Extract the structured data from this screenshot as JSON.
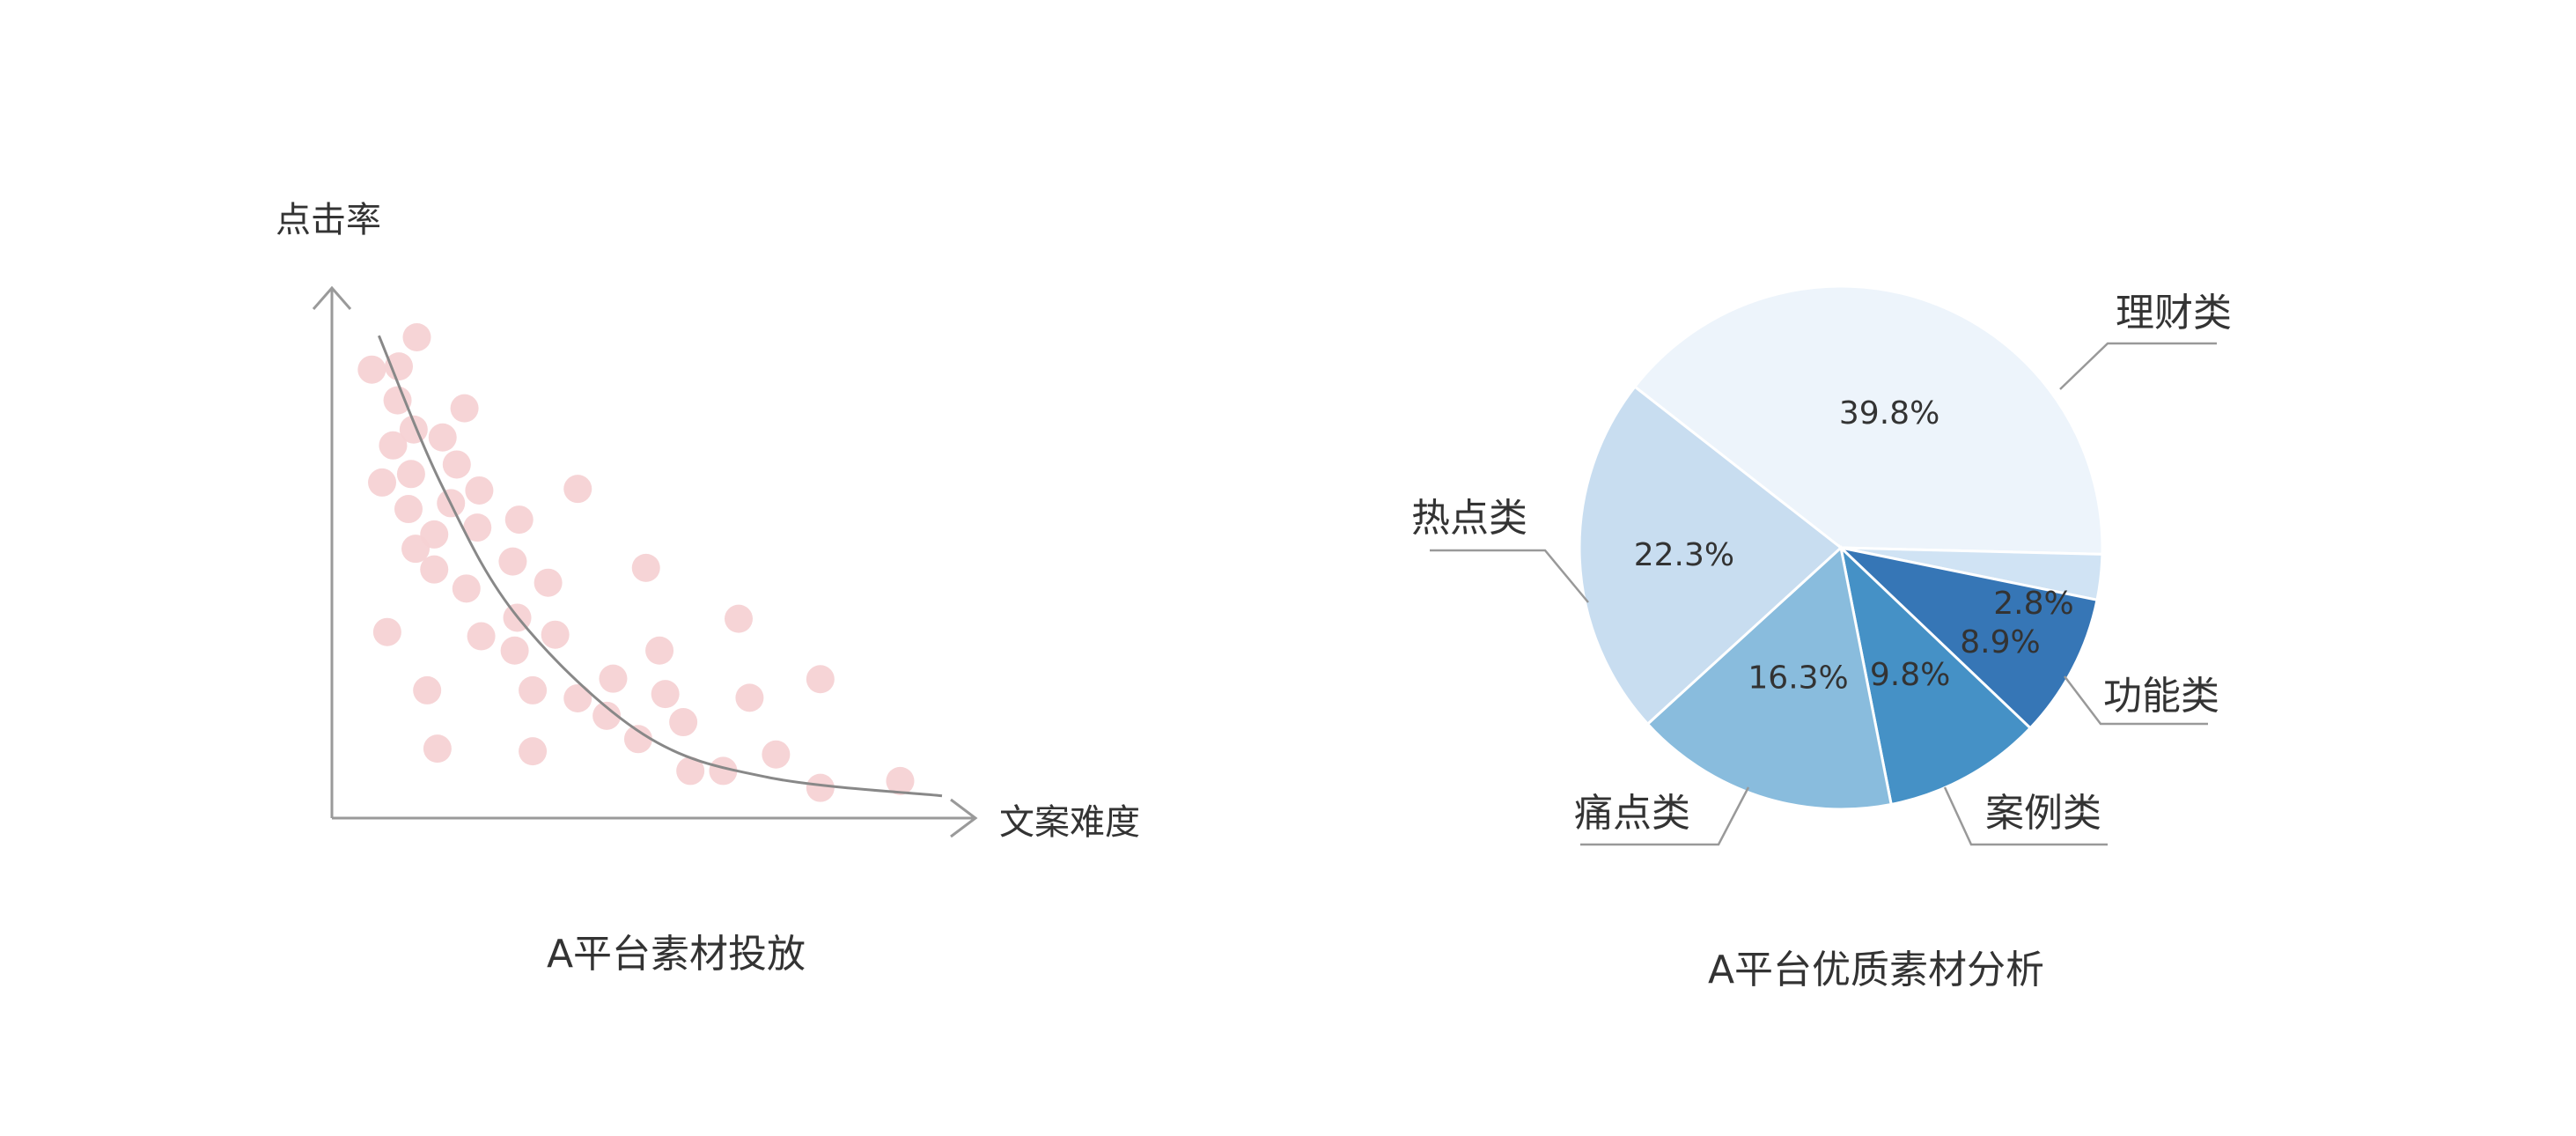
{
  "chart_data": [
    {
      "type": "scatter",
      "title": "A平台素材投放",
      "xlabel": "文案难度",
      "ylabel": "点击率",
      "xlim": [
        0,
        100
      ],
      "ylim": [
        0,
        100
      ],
      "grid": false,
      "point_color": "#f6d2d4",
      "points": [
        [
          13.2,
          90.7
        ],
        [
          6.2,
          84.6
        ],
        [
          10.4,
          85.2
        ],
        [
          10.2,
          78.8
        ],
        [
          20.6,
          77.3
        ],
        [
          12.7,
          73.3
        ],
        [
          17.2,
          71.8
        ],
        [
          9.5,
          70.3
        ],
        [
          19.4,
          66.7
        ],
        [
          12.3,
          64.9
        ],
        [
          7.8,
          63.3
        ],
        [
          22.9,
          61.8
        ],
        [
          38.2,
          62.1
        ],
        [
          18.5,
          59.4
        ],
        [
          11.9,
          58.3
        ],
        [
          29.1,
          56.3
        ],
        [
          22.6,
          54.8
        ],
        [
          15.9,
          53.5
        ],
        [
          13.0,
          50.8
        ],
        [
          28.1,
          48.4
        ],
        [
          48.8,
          47.2
        ],
        [
          15.9,
          46.9
        ],
        [
          33.6,
          44.4
        ],
        [
          20.9,
          43.3
        ],
        [
          63.2,
          37.6
        ],
        [
          28.8,
          37.8
        ],
        [
          8.6,
          35.1
        ],
        [
          23.2,
          34.3
        ],
        [
          34.7,
          34.6
        ],
        [
          28.4,
          31.6
        ],
        [
          50.9,
          31.6
        ],
        [
          75.9,
          26.2
        ],
        [
          43.7,
          26.3
        ],
        [
          14.8,
          24.1
        ],
        [
          31.2,
          24.1
        ],
        [
          51.8,
          23.4
        ],
        [
          64.9,
          22.7
        ],
        [
          38.2,
          22.6
        ],
        [
          42.7,
          19.3
        ],
        [
          54.6,
          18.1
        ],
        [
          47.6,
          14.9
        ],
        [
          16.4,
          13.1
        ],
        [
          31.2,
          12.6
        ],
        [
          69.0,
          12.0
        ],
        [
          55.7,
          8.9
        ],
        [
          60.8,
          8.9
        ],
        [
          88.3,
          7.0
        ],
        [
          75.9,
          5.7
        ]
      ],
      "trend_line": [
        [
          7.3,
          91
        ],
        [
          17.1,
          62.7
        ],
        [
          29,
          37.7
        ],
        [
          48.4,
          15.8
        ],
        [
          67.7,
          7.7
        ],
        [
          94.8,
          4.2
        ]
      ],
      "trend_color": "#888888"
    },
    {
      "type": "pie",
      "title": "A平台优质素材分析",
      "slices": [
        {
          "label": "理财类",
          "value": 39.8,
          "display": "39.8%",
          "color": "#edf4fb"
        },
        {
          "label": "",
          "value": 2.8,
          "display": "2.8%",
          "color": "#d0e3f4"
        },
        {
          "label": "功能类",
          "value": 8.9,
          "display": "8.9%",
          "color": "#3676b6"
        },
        {
          "label": "案例类",
          "value": 9.8,
          "display": "9.8%",
          "color": "#4591c6"
        },
        {
          "label": "痛点类",
          "value": 16.3,
          "display": "16.3%",
          "color": "#89bcdd"
        },
        {
          "label": "热点类",
          "value": 22.3,
          "display": "22.3%",
          "color": "#c8ddf0"
        }
      ]
    }
  ]
}
